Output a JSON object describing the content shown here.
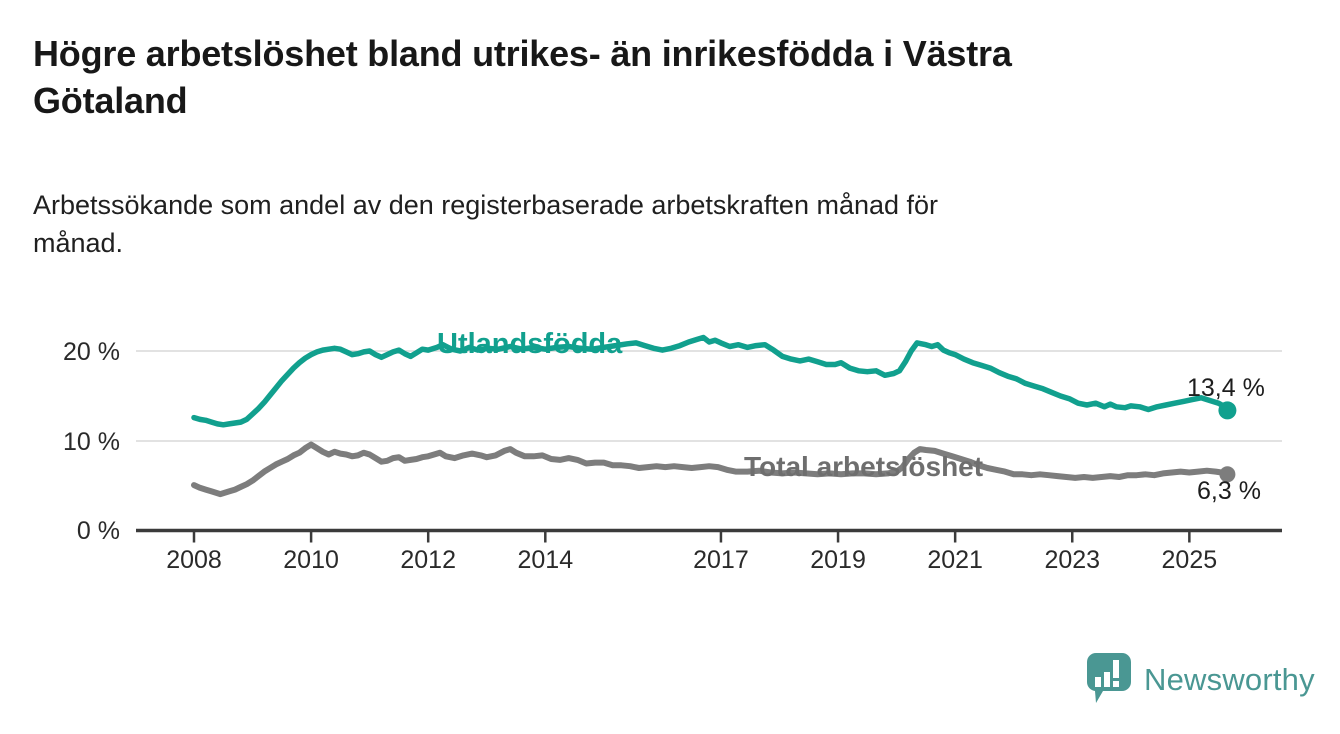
{
  "title_lines": [
    "Högre arbetslöshet bland utrikes- än inrikesfödda i Västra",
    "Götaland"
  ],
  "subtitle_lines": [
    "Arbetssökande som andel av den registerbaserade arbetskraften månad för",
    "månad."
  ],
  "branding": {
    "logo_text": "Newsworthy",
    "logo_icon": "speech-bubble-bar-chart-icon",
    "color": "#4a9793"
  },
  "colors": {
    "foreign_born_line": "#11a08e",
    "total_line": "#7d7d7d",
    "axis": "#3b3b3b",
    "gridline": "#d9d9d9",
    "text_dark": "#181818"
  },
  "chart_data": {
    "type": "line",
    "title": "",
    "xlabel": "",
    "ylabel": "",
    "grid": "horizontal-only",
    "legend": "inline-labels-on-lines",
    "x_range_years": [
      2007.0,
      2026.6
    ],
    "y_range": [
      0,
      23.5
    ],
    "x_ticks": [
      {
        "year": 2008,
        "label": "2008"
      },
      {
        "year": 2010,
        "label": "2010"
      },
      {
        "year": 2012,
        "label": "2012"
      },
      {
        "year": 2014,
        "label": "2014"
      },
      {
        "year": 2017,
        "label": "2017"
      },
      {
        "year": 2019,
        "label": "2019"
      },
      {
        "year": 2021,
        "label": "2021"
      },
      {
        "year": 2023,
        "label": "2023"
      },
      {
        "year": 2025,
        "label": "2025"
      }
    ],
    "y_ticks": [
      {
        "value": 0,
        "label": "0 %"
      },
      {
        "value": 10,
        "label": "10 %"
      },
      {
        "value": 20,
        "label": "20 %"
      }
    ],
    "series": [
      {
        "name": "Utlandsfödda",
        "color": "#11a08e",
        "end_label": "13,4 %",
        "end_value": 13.4,
        "stroke_width": 5.5,
        "end_dot_radius": 9,
        "points": [
          [
            2008.0,
            12.6
          ],
          [
            2008.1,
            12.4
          ],
          [
            2008.2,
            12.3
          ],
          [
            2008.3,
            12.1
          ],
          [
            2008.4,
            11.9
          ],
          [
            2008.5,
            11.8
          ],
          [
            2008.6,
            11.9
          ],
          [
            2008.7,
            12.0
          ],
          [
            2008.8,
            12.1
          ],
          [
            2008.9,
            12.4
          ],
          [
            2009.0,
            13.0
          ],
          [
            2009.1,
            13.6
          ],
          [
            2009.2,
            14.3
          ],
          [
            2009.3,
            15.1
          ],
          [
            2009.4,
            15.9
          ],
          [
            2009.5,
            16.7
          ],
          [
            2009.6,
            17.4
          ],
          [
            2009.7,
            18.1
          ],
          [
            2009.8,
            18.7
          ],
          [
            2009.9,
            19.2
          ],
          [
            2010.0,
            19.6
          ],
          [
            2010.1,
            19.9
          ],
          [
            2010.2,
            20.1
          ],
          [
            2010.3,
            20.2
          ],
          [
            2010.4,
            20.3
          ],
          [
            2010.5,
            20.2
          ],
          [
            2010.6,
            19.9
          ],
          [
            2010.7,
            19.6
          ],
          [
            2010.8,
            19.7
          ],
          [
            2010.9,
            19.9
          ],
          [
            2011.0,
            20.0
          ],
          [
            2011.1,
            19.6
          ],
          [
            2011.2,
            19.3
          ],
          [
            2011.3,
            19.6
          ],
          [
            2011.4,
            19.9
          ],
          [
            2011.5,
            20.1
          ],
          [
            2011.6,
            19.7
          ],
          [
            2011.7,
            19.4
          ],
          [
            2011.8,
            19.8
          ],
          [
            2011.9,
            20.2
          ],
          [
            2012.0,
            20.1
          ],
          [
            2012.15,
            20.4
          ],
          [
            2012.25,
            20.7
          ],
          [
            2012.4,
            20.2
          ],
          [
            2012.55,
            20.0
          ],
          [
            2012.7,
            20.4
          ],
          [
            2012.85,
            20.1
          ],
          [
            2013.0,
            20.3
          ],
          [
            2013.2,
            20.2
          ],
          [
            2013.4,
            20.5
          ],
          [
            2013.6,
            20.2
          ],
          [
            2013.8,
            20.4
          ],
          [
            2014.0,
            20.2
          ],
          [
            2014.2,
            20.4
          ],
          [
            2014.4,
            20.5
          ],
          [
            2014.6,
            20.3
          ],
          [
            2014.8,
            20.2
          ],
          [
            2015.0,
            20.4
          ],
          [
            2015.2,
            20.6
          ],
          [
            2015.4,
            20.8
          ],
          [
            2015.55,
            20.9
          ],
          [
            2015.7,
            20.6
          ],
          [
            2015.85,
            20.3
          ],
          [
            2016.0,
            20.1
          ],
          [
            2016.15,
            20.3
          ],
          [
            2016.3,
            20.6
          ],
          [
            2016.45,
            21.0
          ],
          [
            2016.6,
            21.3
          ],
          [
            2016.7,
            21.5
          ],
          [
            2016.8,
            21.0
          ],
          [
            2016.9,
            21.2
          ],
          [
            2017.0,
            20.9
          ],
          [
            2017.15,
            20.5
          ],
          [
            2017.3,
            20.7
          ],
          [
            2017.45,
            20.4
          ],
          [
            2017.6,
            20.6
          ],
          [
            2017.75,
            20.7
          ],
          [
            2017.9,
            20.1
          ],
          [
            2018.05,
            19.4
          ],
          [
            2018.2,
            19.1
          ],
          [
            2018.35,
            18.9
          ],
          [
            2018.5,
            19.1
          ],
          [
            2018.65,
            18.8
          ],
          [
            2018.8,
            18.5
          ],
          [
            2018.95,
            18.5
          ],
          [
            2019.05,
            18.7
          ],
          [
            2019.2,
            18.1
          ],
          [
            2019.35,
            17.8
          ],
          [
            2019.5,
            17.7
          ],
          [
            2019.65,
            17.8
          ],
          [
            2019.8,
            17.3
          ],
          [
            2019.95,
            17.5
          ],
          [
            2020.05,
            17.8
          ],
          [
            2020.15,
            18.8
          ],
          [
            2020.25,
            20.0
          ],
          [
            2020.35,
            20.9
          ],
          [
            2020.5,
            20.7
          ],
          [
            2020.6,
            20.5
          ],
          [
            2020.7,
            20.7
          ],
          [
            2020.8,
            20.1
          ],
          [
            2020.9,
            19.8
          ],
          [
            2021.0,
            19.6
          ],
          [
            2021.15,
            19.1
          ],
          [
            2021.3,
            18.7
          ],
          [
            2021.45,
            18.4
          ],
          [
            2021.6,
            18.1
          ],
          [
            2021.75,
            17.6
          ],
          [
            2021.9,
            17.2
          ],
          [
            2022.05,
            16.9
          ],
          [
            2022.2,
            16.4
          ],
          [
            2022.35,
            16.1
          ],
          [
            2022.5,
            15.8
          ],
          [
            2022.65,
            15.4
          ],
          [
            2022.8,
            15.0
          ],
          [
            2022.95,
            14.7
          ],
          [
            2023.1,
            14.2
          ],
          [
            2023.25,
            14.0
          ],
          [
            2023.4,
            14.2
          ],
          [
            2023.55,
            13.8
          ],
          [
            2023.65,
            14.1
          ],
          [
            2023.75,
            13.8
          ],
          [
            2023.9,
            13.7
          ],
          [
            2024.0,
            13.9
          ],
          [
            2024.15,
            13.8
          ],
          [
            2024.3,
            13.5
          ],
          [
            2024.45,
            13.8
          ],
          [
            2024.6,
            14.0
          ],
          [
            2024.75,
            14.2
          ],
          [
            2024.9,
            14.4
          ],
          [
            2025.05,
            14.6
          ],
          [
            2025.2,
            14.8
          ],
          [
            2025.35,
            14.5
          ],
          [
            2025.5,
            14.2
          ],
          [
            2025.58,
            13.9
          ],
          [
            2025.65,
            13.4
          ]
        ]
      },
      {
        "name": "Total arbetslöshet",
        "color": "#7d7d7d",
        "end_label": "6,3 %",
        "end_value": 6.3,
        "stroke_width": 6,
        "end_dot_radius": 8,
        "points": [
          [
            2008.0,
            5.1
          ],
          [
            2008.1,
            4.8
          ],
          [
            2008.2,
            4.6
          ],
          [
            2008.3,
            4.4
          ],
          [
            2008.45,
            4.1
          ],
          [
            2008.6,
            4.4
          ],
          [
            2008.7,
            4.6
          ],
          [
            2008.8,
            4.9
          ],
          [
            2008.9,
            5.2
          ],
          [
            2009.0,
            5.6
          ],
          [
            2009.1,
            6.1
          ],
          [
            2009.2,
            6.6
          ],
          [
            2009.3,
            7.0
          ],
          [
            2009.4,
            7.4
          ],
          [
            2009.5,
            7.7
          ],
          [
            2009.6,
            8.0
          ],
          [
            2009.7,
            8.4
          ],
          [
            2009.8,
            8.7
          ],
          [
            2009.9,
            9.2
          ],
          [
            2010.0,
            9.6
          ],
          [
            2010.1,
            9.2
          ],
          [
            2010.2,
            8.8
          ],
          [
            2010.3,
            8.5
          ],
          [
            2010.4,
            8.8
          ],
          [
            2010.5,
            8.6
          ],
          [
            2010.6,
            8.5
          ],
          [
            2010.7,
            8.3
          ],
          [
            2010.8,
            8.4
          ],
          [
            2010.9,
            8.7
          ],
          [
            2011.0,
            8.5
          ],
          [
            2011.1,
            8.1
          ],
          [
            2011.2,
            7.7
          ],
          [
            2011.3,
            7.8
          ],
          [
            2011.4,
            8.1
          ],
          [
            2011.5,
            8.2
          ],
          [
            2011.6,
            7.8
          ],
          [
            2011.7,
            7.9
          ],
          [
            2011.8,
            8.0
          ],
          [
            2011.9,
            8.2
          ],
          [
            2012.0,
            8.3
          ],
          [
            2012.1,
            8.5
          ],
          [
            2012.2,
            8.7
          ],
          [
            2012.3,
            8.3
          ],
          [
            2012.45,
            8.1
          ],
          [
            2012.6,
            8.4
          ],
          [
            2012.75,
            8.6
          ],
          [
            2012.9,
            8.4
          ],
          [
            2013.0,
            8.2
          ],
          [
            2013.15,
            8.4
          ],
          [
            2013.3,
            8.9
          ],
          [
            2013.4,
            9.1
          ],
          [
            2013.5,
            8.7
          ],
          [
            2013.65,
            8.3
          ],
          [
            2013.8,
            8.3
          ],
          [
            2013.95,
            8.4
          ],
          [
            2014.1,
            8.0
          ],
          [
            2014.25,
            7.9
          ],
          [
            2014.4,
            8.1
          ],
          [
            2014.55,
            7.9
          ],
          [
            2014.7,
            7.5
          ],
          [
            2014.85,
            7.6
          ],
          [
            2015.0,
            7.6
          ],
          [
            2015.15,
            7.3
          ],
          [
            2015.3,
            7.3
          ],
          [
            2015.45,
            7.2
          ],
          [
            2015.6,
            7.0
          ],
          [
            2015.75,
            7.1
          ],
          [
            2015.9,
            7.2
          ],
          [
            2016.05,
            7.1
          ],
          [
            2016.2,
            7.2
          ],
          [
            2016.35,
            7.1
          ],
          [
            2016.5,
            7.0
          ],
          [
            2016.65,
            7.1
          ],
          [
            2016.8,
            7.2
          ],
          [
            2016.95,
            7.1
          ],
          [
            2017.1,
            6.8
          ],
          [
            2017.25,
            6.6
          ],
          [
            2017.45,
            6.6
          ],
          [
            2017.65,
            6.7
          ],
          [
            2017.85,
            6.5
          ],
          [
            2018.05,
            6.4
          ],
          [
            2018.25,
            6.5
          ],
          [
            2018.45,
            6.4
          ],
          [
            2018.65,
            6.3
          ],
          [
            2018.85,
            6.4
          ],
          [
            2019.05,
            6.3
          ],
          [
            2019.25,
            6.4
          ],
          [
            2019.45,
            6.4
          ],
          [
            2019.65,
            6.3
          ],
          [
            2019.85,
            6.4
          ],
          [
            2020.0,
            6.6
          ],
          [
            2020.1,
            7.1
          ],
          [
            2020.2,
            8.0
          ],
          [
            2020.3,
            8.7
          ],
          [
            2020.4,
            9.1
          ],
          [
            2020.5,
            9.0
          ],
          [
            2020.65,
            8.9
          ],
          [
            2020.8,
            8.6
          ],
          [
            2020.95,
            8.3
          ],
          [
            2021.1,
            8.0
          ],
          [
            2021.25,
            7.7
          ],
          [
            2021.4,
            7.3
          ],
          [
            2021.55,
            7.0
          ],
          [
            2021.7,
            6.8
          ],
          [
            2021.85,
            6.6
          ],
          [
            2022.0,
            6.3
          ],
          [
            2022.15,
            6.3
          ],
          [
            2022.3,
            6.2
          ],
          [
            2022.45,
            6.3
          ],
          [
            2022.6,
            6.2
          ],
          [
            2022.75,
            6.1
          ],
          [
            2022.9,
            6.0
          ],
          [
            2023.05,
            5.9
          ],
          [
            2023.2,
            6.0
          ],
          [
            2023.35,
            5.9
          ],
          [
            2023.5,
            6.0
          ],
          [
            2023.65,
            6.1
          ],
          [
            2023.8,
            6.0
          ],
          [
            2023.95,
            6.2
          ],
          [
            2024.1,
            6.2
          ],
          [
            2024.25,
            6.3
          ],
          [
            2024.4,
            6.2
          ],
          [
            2024.55,
            6.4
          ],
          [
            2024.7,
            6.5
          ],
          [
            2024.85,
            6.6
          ],
          [
            2025.0,
            6.5
          ],
          [
            2025.15,
            6.6
          ],
          [
            2025.3,
            6.7
          ],
          [
            2025.45,
            6.6
          ],
          [
            2025.55,
            6.5
          ],
          [
            2025.65,
            6.3
          ]
        ]
      }
    ]
  }
}
